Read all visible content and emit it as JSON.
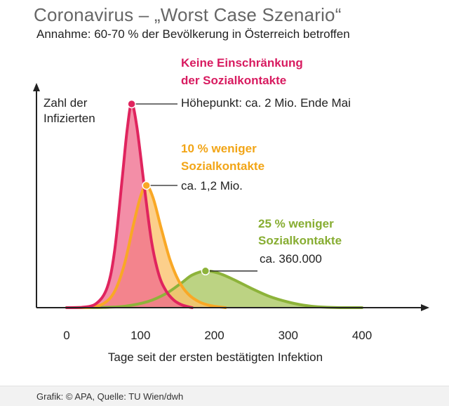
{
  "header": {
    "title": "Coronavirus – „Worst Case Szenario“",
    "subtitle": "Annahme: 60-70 % der Bevölkerung in Österreich betroffen"
  },
  "footer": {
    "source": "Grafik: © APA, Quelle: TU Wien/dwh"
  },
  "chart_data": {
    "type": "area",
    "title": "Coronavirus – „Worst Case Szenario“",
    "subtitle": "Annahme: 60-70 % der Bevölkerung in Österreich betroffen",
    "xlabel": "Tage seit der ersten bestätigten Infektion",
    "ylabel_lines": [
      "Zahl der",
      "Infizierten"
    ],
    "x_ticks": [
      0,
      100,
      200,
      300,
      400
    ],
    "xlim": [
      0,
      400
    ],
    "ylim": [
      0,
      2200000
    ],
    "grid": false,
    "legend": "none",
    "series": [
      {
        "name_lines": [
          "Keine Einschränkung",
          "der Sozialkontakte"
        ],
        "color": "#e0245e",
        "fill": "#f06e8e",
        "annotation": "Höhepunkt: ca. 2 Mio. Ende Mai",
        "peak_x": 88,
        "peak_y": 2000000,
        "points": [
          [
            0,
            0
          ],
          [
            20,
            3000
          ],
          [
            40,
            40000
          ],
          [
            55,
            200000
          ],
          [
            65,
            560000
          ],
          [
            75,
            1250000
          ],
          [
            82,
            1750000
          ],
          [
            88,
            2000000
          ],
          [
            95,
            1780000
          ],
          [
            105,
            1200000
          ],
          [
            115,
            650000
          ],
          [
            125,
            320000
          ],
          [
            135,
            160000
          ],
          [
            145,
            75000
          ],
          [
            155,
            30000
          ],
          [
            165,
            8000
          ],
          [
            170,
            0
          ]
        ]
      },
      {
        "name_lines": [
          "10 % weniger",
          "Sozialkontakte"
        ],
        "color": "#f9a825",
        "fill": "#fbc26a",
        "annotation": "ca. 1,2 Mio.",
        "peak_x": 108,
        "peak_y": 1200000,
        "points": [
          [
            0,
            0
          ],
          [
            30,
            3000
          ],
          [
            50,
            40000
          ],
          [
            65,
            160000
          ],
          [
            78,
            420000
          ],
          [
            90,
            800000
          ],
          [
            100,
            1090000
          ],
          [
            108,
            1200000
          ],
          [
            117,
            1080000
          ],
          [
            128,
            780000
          ],
          [
            140,
            470000
          ],
          [
            152,
            260000
          ],
          [
            165,
            130000
          ],
          [
            180,
            55000
          ],
          [
            195,
            20000
          ],
          [
            210,
            5000
          ],
          [
            215,
            0
          ]
        ]
      },
      {
        "name_lines": [
          "25 % weniger",
          "Sozialkontakte"
        ],
        "color": "#8db33a",
        "fill": "#a9c760",
        "annotation": "ca. 360.000",
        "peak_x": 188,
        "peak_y": 360000,
        "points": [
          [
            0,
            0
          ],
          [
            50,
            3000
          ],
          [
            80,
            15000
          ],
          [
            110,
            60000
          ],
          [
            135,
            140000
          ],
          [
            155,
            240000
          ],
          [
            170,
            320000
          ],
          [
            188,
            360000
          ],
          [
            205,
            340000
          ],
          [
            225,
            280000
          ],
          [
            250,
            190000
          ],
          [
            275,
            110000
          ],
          [
            300,
            55000
          ],
          [
            320,
            25000
          ],
          [
            340,
            8000
          ],
          [
            370,
            0
          ],
          [
            400,
            0
          ]
        ]
      }
    ]
  }
}
